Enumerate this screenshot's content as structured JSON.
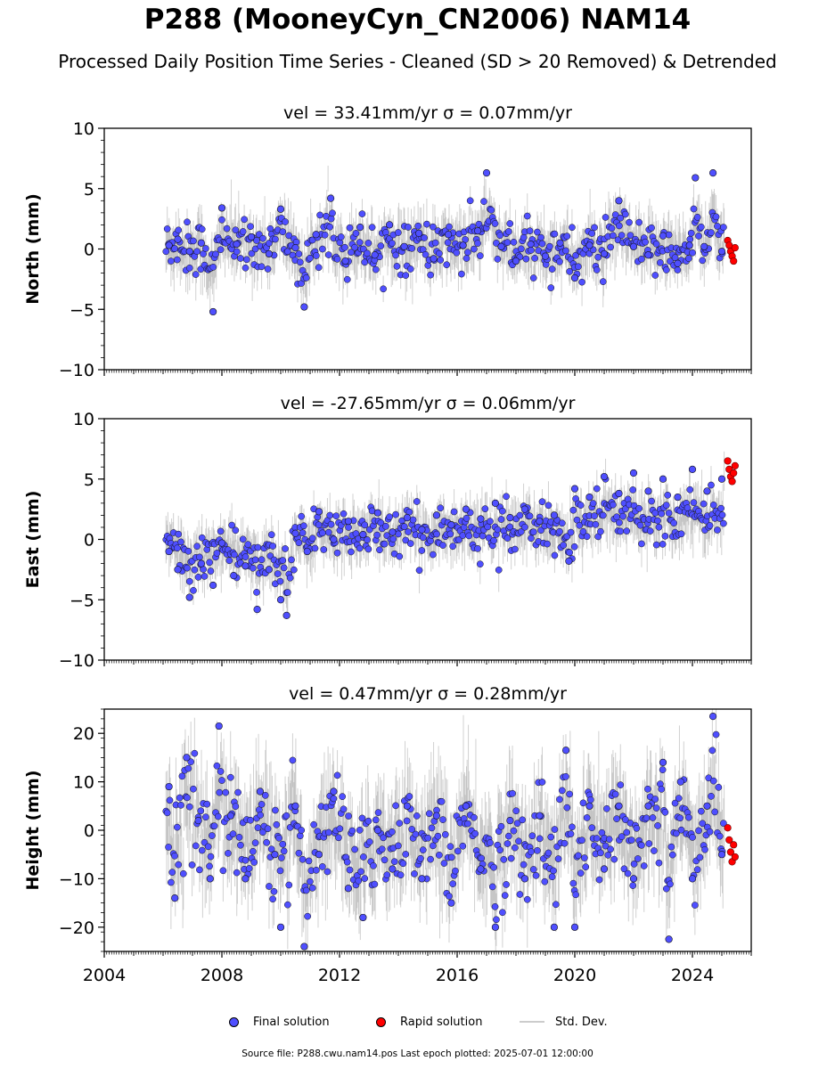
{
  "title": "P288 (MooneyCyn_CN2006) NAM14",
  "subtitle": "Processed Daily Position Time Series - Cleaned (SD > 20 Removed) & Detrended",
  "legend": {
    "final": "Final solution",
    "rapid": "Rapid solution",
    "sd": "Std. Dev."
  },
  "footer": "Source file: P288.cwu.nam14.pos  Last epoch plotted: 2025-07-01 12:00:00",
  "colors": {
    "final": "#4f4fff",
    "rapid": "#ff0000",
    "sd": "#999999"
  },
  "chart_data": [
    {
      "type": "scatter",
      "title": "vel = 33.41mm/yr   σ = 0.07mm/yr",
      "ylabel": "North (mm)",
      "xlim": [
        2004,
        2026
      ],
      "ylim": [
        -10,
        10
      ],
      "yticks": [
        -10,
        -5,
        0,
        5,
        10
      ],
      "data_span": [
        2006.1,
        2025.1
      ],
      "rapid_span": [
        2025.1,
        2025.5
      ],
      "spread_sd": 1.1,
      "series": [
        {
          "name": "Final solution",
          "points": [
            [
              2006.2,
              0.3
            ],
            [
              2006.5,
              0.8
            ],
            [
              2006.9,
              -0.2
            ],
            [
              2007.3,
              0.5
            ],
            [
              2007.7,
              -5.2
            ],
            [
              2008.0,
              3.4
            ],
            [
              2008.5,
              0.4
            ],
            [
              2009.0,
              1.0
            ],
            [
              2009.6,
              -0.4
            ],
            [
              2010.0,
              3.3
            ],
            [
              2010.5,
              0.1
            ],
            [
              2010.8,
              -4.8
            ],
            [
              2011.2,
              1.2
            ],
            [
              2011.7,
              4.2
            ],
            [
              2012.2,
              -1.0
            ],
            [
              2012.7,
              1.8
            ],
            [
              2013.2,
              -0.5
            ],
            [
              2013.7,
              2.0
            ],
            [
              2014.2,
              0.2
            ],
            [
              2014.7,
              1.3
            ],
            [
              2015.2,
              -0.8
            ],
            [
              2015.7,
              1.2
            ],
            [
              2016.2,
              0.3
            ],
            [
              2016.7,
              1.5
            ],
            [
              2017.0,
              6.3
            ],
            [
              2017.5,
              0.2
            ],
            [
              2018.0,
              -1.0
            ],
            [
              2018.5,
              0.4
            ],
            [
              2019.0,
              -0.6
            ],
            [
              2019.5,
              0.5
            ],
            [
              2020.0,
              -2.4
            ],
            [
              2020.5,
              0.3
            ],
            [
              2021.0,
              -0.4
            ],
            [
              2021.5,
              4.0
            ],
            [
              2022.0,
              0.2
            ],
            [
              2022.5,
              -0.5
            ],
            [
              2023.0,
              1.1
            ],
            [
              2023.5,
              -1.2
            ],
            [
              2023.9,
              0.3
            ],
            [
              2024.1,
              5.9
            ],
            [
              2024.4,
              0.2
            ],
            [
              2024.7,
              6.3
            ],
            [
              2025.0,
              -0.2
            ]
          ]
        },
        {
          "name": "Rapid solution",
          "points": [
            [
              2025.2,
              0.7
            ],
            [
              2025.25,
              0.3
            ],
            [
              2025.3,
              -0.2
            ],
            [
              2025.35,
              -0.6
            ],
            [
              2025.4,
              -1.0
            ],
            [
              2025.45,
              0.1
            ]
          ]
        }
      ]
    },
    {
      "type": "scatter",
      "title": "vel = -27.65mm/yr   σ = 0.06mm/yr",
      "ylabel": "East (mm)",
      "xlim": [
        2004,
        2026
      ],
      "ylim": [
        -10,
        10
      ],
      "yticks": [
        -10,
        -5,
        0,
        5,
        10
      ],
      "data_span": [
        2006.1,
        2025.1
      ],
      "rapid_span": [
        2025.1,
        2025.5
      ],
      "spread_sd": 1.0,
      "series": [
        {
          "name": "Final solution",
          "points": [
            [
              2006.2,
              -1.0
            ],
            [
              2006.5,
              -2.5
            ],
            [
              2006.9,
              -4.8
            ],
            [
              2007.3,
              -2.0
            ],
            [
              2007.7,
              -3.8
            ],
            [
              2008.0,
              -0.3
            ],
            [
              2008.4,
              -3.0
            ],
            [
              2008.8,
              -2.2
            ],
            [
              2009.2,
              -5.8
            ],
            [
              2009.6,
              -2.5
            ],
            [
              2010.0,
              -5.0
            ],
            [
              2010.2,
              -6.3
            ],
            [
              2010.5,
              0.5
            ],
            [
              2010.9,
              -1.0
            ],
            [
              2011.3,
              2.3
            ],
            [
              2011.8,
              0.0
            ],
            [
              2012.3,
              1.5
            ],
            [
              2012.8,
              0.4
            ],
            [
              2013.3,
              2.2
            ],
            [
              2013.8,
              0.6
            ],
            [
              2014.3,
              1.8
            ],
            [
              2014.8,
              0.8
            ],
            [
              2015.3,
              2.0
            ],
            [
              2015.8,
              1.2
            ],
            [
              2016.3,
              2.5
            ],
            [
              2016.8,
              1.7
            ],
            [
              2017.3,
              3.0
            ],
            [
              2017.8,
              1.8
            ],
            [
              2018.3,
              2.5
            ],
            [
              2018.8,
              1.5
            ],
            [
              2019.3,
              2.0
            ],
            [
              2019.8,
              -1.8
            ],
            [
              2020.0,
              4.2
            ],
            [
              2020.5,
              3.5
            ],
            [
              2021.0,
              5.2
            ],
            [
              2021.5,
              3.8
            ],
            [
              2022.0,
              5.5
            ],
            [
              2022.5,
              4.0
            ],
            [
              2023.0,
              5.0
            ],
            [
              2023.5,
              3.5
            ],
            [
              2024.0,
              5.8
            ],
            [
              2024.5,
              4.0
            ],
            [
              2025.0,
              5.0
            ]
          ]
        },
        {
          "name": "Rapid solution",
          "points": [
            [
              2025.2,
              6.5
            ],
            [
              2025.25,
              5.8
            ],
            [
              2025.3,
              5.2
            ],
            [
              2025.35,
              4.8
            ],
            [
              2025.4,
              5.5
            ],
            [
              2025.45,
              6.1
            ]
          ]
        }
      ]
    },
    {
      "type": "scatter",
      "title": "vel = 0.47mm/yr   σ = 0.28mm/yr",
      "ylabel": "Height (mm)",
      "xlim": [
        2004,
        2026
      ],
      "ylim": [
        -25,
        25
      ],
      "yticks": [
        -20,
        -10,
        0,
        10,
        20
      ],
      "xticks": [
        2004,
        2008,
        2012,
        2016,
        2020,
        2024
      ],
      "data_span": [
        2006.1,
        2025.1
      ],
      "rapid_span": [
        2025.1,
        2025.5
      ],
      "spread_sd": 5.0,
      "series": [
        {
          "name": "Final solution",
          "points": [
            [
              2006.2,
              9.0
            ],
            [
              2006.4,
              -14.0
            ],
            [
              2006.8,
              15.0
            ],
            [
              2007.2,
              2.0
            ],
            [
              2007.6,
              -10.0
            ],
            [
              2007.9,
              21.5
            ],
            [
              2008.3,
              3.0
            ],
            [
              2008.8,
              -10.0
            ],
            [
              2009.3,
              8.0
            ],
            [
              2009.8,
              -5.0
            ],
            [
              2010.0,
              -20.0
            ],
            [
              2010.5,
              5.0
            ],
            [
              2010.8,
              -24.0
            ],
            [
              2011.3,
              -5.0
            ],
            [
              2011.8,
              8.0
            ],
            [
              2012.3,
              -12.0
            ],
            [
              2012.8,
              -18.0
            ],
            [
              2013.3,
              0.0
            ],
            [
              2013.8,
              -8.0
            ],
            [
              2014.3,
              5.0
            ],
            [
              2014.8,
              -10.0
            ],
            [
              2015.3,
              3.0
            ],
            [
              2015.8,
              -15.0
            ],
            [
              2016.3,
              5.0
            ],
            [
              2016.8,
              -8.0
            ],
            [
              2017.3,
              -20.0
            ],
            [
              2017.8,
              2.0
            ],
            [
              2018.3,
              -10.0
            ],
            [
              2018.8,
              3.0
            ],
            [
              2019.3,
              -20.0
            ],
            [
              2019.7,
              16.5
            ],
            [
              2020.0,
              -20.0
            ],
            [
              2020.5,
              5.0
            ],
            [
              2021.0,
              -8.0
            ],
            [
              2021.5,
              5.0
            ],
            [
              2022.0,
              -10.0
            ],
            [
              2022.5,
              5.0
            ],
            [
              2023.0,
              14.0
            ],
            [
              2023.2,
              -22.5
            ],
            [
              2023.6,
              10.0
            ],
            [
              2024.0,
              -10.0
            ],
            [
              2024.5,
              5.0
            ],
            [
              2024.7,
              23.5
            ],
            [
              2025.0,
              -5.0
            ]
          ]
        },
        {
          "name": "Rapid solution",
          "points": [
            [
              2025.2,
              0.5
            ],
            [
              2025.25,
              -2.0
            ],
            [
              2025.3,
              -4.5
            ],
            [
              2025.35,
              -6.5
            ],
            [
              2025.4,
              -3.0
            ],
            [
              2025.45,
              -5.5
            ]
          ]
        }
      ]
    }
  ]
}
